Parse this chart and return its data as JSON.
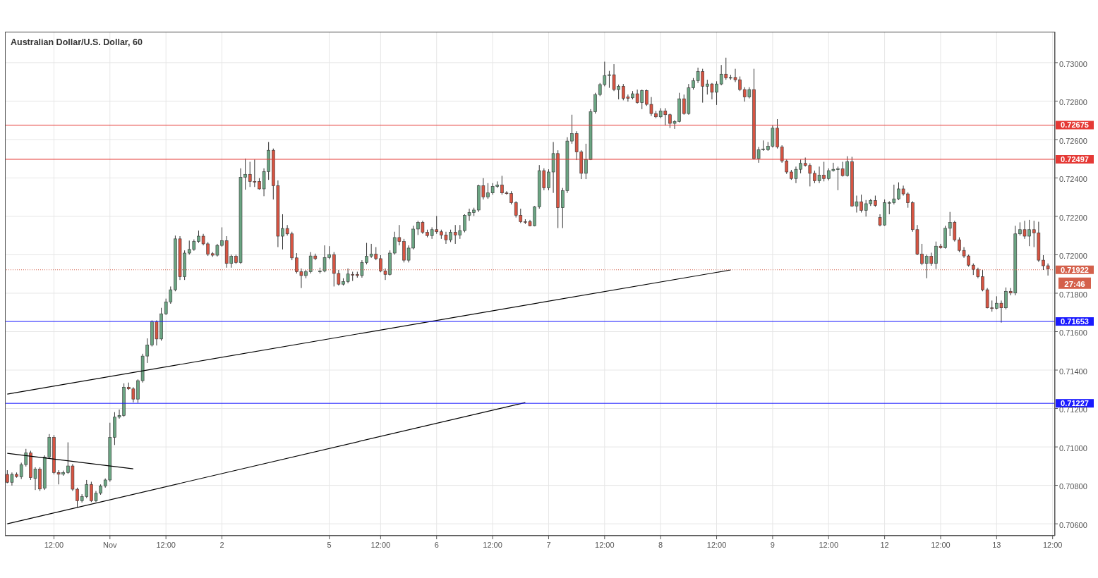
{
  "chart_data": {
    "type": "candlestick",
    "title": "Australian Dollar/U.S. Dollar, 60",
    "categories": [
      null,
      null,
      null,
      null,
      null,
      null,
      null,
      null,
      null,
      null,
      "12:00",
      null,
      null,
      null,
      null,
      null,
      null,
      null,
      null,
      null,
      null,
      null,
      "Nov",
      null,
      null,
      null,
      null,
      null,
      null,
      null,
      null,
      null,
      null,
      null,
      "12:00",
      null,
      null,
      null,
      null,
      null,
      null,
      null,
      null,
      null,
      null,
      null,
      "2",
      null,
      null,
      null,
      null,
      null,
      null,
      null,
      null,
      null,
      null,
      null,
      null,
      null,
      null,
      null,
      null,
      null,
      null,
      null,
      null,
      null,
      null,
      "5",
      null,
      null,
      null,
      null,
      null,
      null,
      null,
      null,
      null,
      null,
      "12:00",
      null,
      null,
      null,
      null,
      null,
      null,
      null,
      null,
      null,
      null,
      null,
      "6",
      null,
      null,
      null,
      null,
      null,
      null,
      null,
      null,
      null,
      null,
      null,
      "12:00",
      null,
      null,
      null,
      null,
      null,
      null,
      null,
      null,
      null,
      null,
      null,
      "7",
      null,
      null,
      null,
      null,
      null,
      null,
      null,
      null,
      null,
      null,
      null,
      "12:00",
      null,
      null,
      null,
      null,
      null,
      null,
      null,
      null,
      null,
      null,
      null,
      "8",
      null,
      null,
      null,
      null,
      null,
      null,
      null,
      null,
      null,
      null,
      null,
      "12:00",
      null,
      null,
      null,
      null,
      null,
      null,
      null,
      null,
      null,
      null,
      null,
      "9",
      null,
      null,
      null,
      null,
      null,
      null,
      null,
      null,
      null,
      null,
      null,
      "12:00",
      null,
      null,
      null,
      null,
      null,
      null,
      null,
      null,
      null,
      null,
      null,
      "12",
      null,
      null,
      null,
      null,
      null,
      null,
      null,
      null,
      null,
      null,
      null,
      "12:00",
      null,
      null,
      null,
      null,
      null,
      null,
      null,
      null,
      null,
      null,
      null,
      "13",
      null,
      null,
      null,
      null,
      null,
      null,
      null,
      null,
      null,
      null,
      null,
      "12:00"
    ],
    "ohlc": [
      [
        0.70857,
        0.70879,
        0.70811,
        0.70816
      ],
      [
        0.70816,
        0.70867,
        0.70799,
        0.70857
      ],
      [
        0.70857,
        0.70867,
        0.7084,
        0.70846
      ],
      [
        0.70845,
        0.70918,
        0.70833,
        0.70908
      ],
      [
        0.70908,
        0.7099,
        0.70898,
        0.70969
      ],
      [
        0.70969,
        0.7098,
        0.70828,
        0.7084
      ],
      [
        0.70836,
        0.70894,
        0.70776,
        0.70884
      ],
      [
        0.70884,
        0.70894,
        0.70771,
        0.70781
      ],
      [
        0.70785,
        0.70956,
        0.70776,
        0.70947
      ],
      [
        0.70947,
        0.71067,
        0.70939,
        0.7105
      ],
      [
        0.7105,
        0.71062,
        0.70857,
        0.70867
      ],
      [
        0.70867,
        0.70879,
        0.70805,
        0.70858
      ],
      [
        0.70858,
        0.70877,
        0.7085,
        0.70867
      ],
      [
        0.70867,
        0.71024,
        0.7086,
        0.70901
      ],
      [
        0.70901,
        0.70911,
        0.70771,
        0.7078
      ],
      [
        0.7078,
        0.70788,
        0.70686,
        0.7072
      ],
      [
        0.7072,
        0.70754,
        0.70711,
        0.70742
      ],
      [
        0.70742,
        0.70828,
        0.70734,
        0.70805
      ],
      [
        0.70805,
        0.70819,
        0.70713,
        0.7072
      ],
      [
        0.7072,
        0.70771,
        0.70713,
        0.70759
      ],
      [
        0.70759,
        0.70805,
        0.70751,
        0.70797
      ],
      [
        0.70797,
        0.70836,
        0.70788,
        0.70828
      ],
      [
        0.70828,
        0.71126,
        0.70819,
        0.7105
      ],
      [
        0.7105,
        0.71181,
        0.7101,
        0.71155
      ],
      [
        0.71155,
        0.71195,
        0.71147,
        0.71164
      ],
      [
        0.71164,
        0.71331,
        0.71157,
        0.71311
      ],
      [
        0.71311,
        0.71335,
        0.71297,
        0.71302
      ],
      [
        0.71302,
        0.71311,
        0.71232,
        0.71249
      ],
      [
        0.71249,
        0.71352,
        0.71229,
        0.71345
      ],
      [
        0.71345,
        0.71485,
        0.71335,
        0.71473
      ],
      [
        0.71473,
        0.71565,
        0.71437,
        0.71531
      ],
      [
        0.71531,
        0.71659,
        0.71523,
        0.71651
      ],
      [
        0.71651,
        0.71659,
        0.71528,
        0.71562
      ],
      [
        0.71562,
        0.71724,
        0.71553,
        0.71693
      ],
      [
        0.71693,
        0.71772,
        0.71687,
        0.71755
      ],
      [
        0.71755,
        0.71835,
        0.71745,
        0.71818
      ],
      [
        0.71818,
        0.721,
        0.7181,
        0.72083
      ],
      [
        0.72083,
        0.72097,
        0.71869,
        0.71886
      ],
      [
        0.71886,
        0.72023,
        0.71869,
        0.72009
      ],
      [
        0.72009,
        0.72074,
        0.72001,
        0.72028
      ],
      [
        0.72028,
        0.7208,
        0.72021,
        0.72069
      ],
      [
        0.72069,
        0.72126,
        0.72062,
        0.72097
      ],
      [
        0.72097,
        0.72109,
        0.72049,
        0.72057
      ],
      [
        0.72057,
        0.72066,
        0.71994,
        0.72003
      ],
      [
        0.72006,
        0.72014,
        0.71989,
        0.71998
      ],
      [
        0.71998,
        0.72057,
        0.71991,
        0.72049
      ],
      [
        0.72049,
        0.72143,
        0.72042,
        0.72074
      ],
      [
        0.72074,
        0.72097,
        0.71933,
        0.71955
      ],
      [
        0.71955,
        0.72001,
        0.71933,
        0.71992
      ],
      [
        0.71992,
        0.72001,
        0.71953,
        0.7196
      ],
      [
        0.7196,
        0.7245,
        0.71953,
        0.72404
      ],
      [
        0.72404,
        0.72501,
        0.72339,
        0.72419
      ],
      [
        0.72419,
        0.72484,
        0.72353,
        0.72382
      ],
      [
        0.72382,
        0.72496,
        0.72353,
        0.72378
      ],
      [
        0.72382,
        0.72399,
        0.72339,
        0.72343
      ],
      [
        0.72343,
        0.7245,
        0.72305,
        0.72433
      ],
      [
        0.72433,
        0.72587,
        0.7239,
        0.72544
      ],
      [
        0.72544,
        0.72553,
        0.72288,
        0.7236
      ],
      [
        0.7236,
        0.72387,
        0.7204,
        0.72097
      ],
      [
        0.72097,
        0.72211,
        0.72028,
        0.72137
      ],
      [
        0.72137,
        0.72155,
        0.721,
        0.72109
      ],
      [
        0.72109,
        0.7212,
        0.71972,
        0.71984
      ],
      [
        0.71984,
        0.72009,
        0.71903,
        0.71912
      ],
      [
        0.71912,
        0.71929,
        0.71827,
        0.71892
      ],
      [
        0.71892,
        0.71921,
        0.71878,
        0.71912
      ],
      [
        0.71912,
        0.72014,
        0.71903,
        0.71994
      ],
      [
        0.71994,
        0.72006,
        0.71972,
        0.7198
      ],
      [
        0.71912,
        0.71933,
        0.71903,
        0.71916
      ],
      [
        0.71916,
        0.72049,
        0.71909,
        0.71986
      ],
      [
        0.71986,
        0.72045,
        0.71977,
        0.72001
      ],
      [
        0.72001,
        0.72014,
        0.71835,
        0.71903
      ],
      [
        0.71903,
        0.71921,
        0.7184,
        0.71847
      ],
      [
        0.71847,
        0.71878,
        0.7184,
        0.71861
      ],
      [
        0.71861,
        0.71929,
        0.71852,
        0.719
      ],
      [
        0.71898,
        0.71912,
        0.71864,
        0.71895
      ],
      [
        0.71898,
        0.71912,
        0.71881,
        0.71892
      ],
      [
        0.71892,
        0.71972,
        0.71881,
        0.7196
      ],
      [
        0.7196,
        0.72062,
        0.7195,
        0.71992
      ],
      [
        0.71992,
        0.72057,
        0.71984,
        0.72004
      ],
      [
        0.72004,
        0.7204,
        0.71972,
        0.7198
      ],
      [
        0.7198,
        0.71998,
        0.71909,
        0.71916
      ],
      [
        0.71916,
        0.71929,
        0.71869,
        0.71898
      ],
      [
        0.71898,
        0.72023,
        0.71892,
        0.72009
      ],
      [
        0.72009,
        0.7212,
        0.72001,
        0.7209
      ],
      [
        0.7209,
        0.72155,
        0.72049,
        0.72069
      ],
      [
        0.72069,
        0.72083,
        0.7196,
        0.71972
      ],
      [
        0.71972,
        0.72049,
        0.7196,
        0.72035
      ],
      [
        0.72035,
        0.72151,
        0.72028,
        0.72134
      ],
      [
        0.72134,
        0.72177,
        0.72103,
        0.72169
      ],
      [
        0.72169,
        0.72177,
        0.72109,
        0.72117
      ],
      [
        0.72117,
        0.72131,
        0.72091,
        0.721
      ],
      [
        0.721,
        0.72143,
        0.72083,
        0.72131
      ],
      [
        0.72131,
        0.72202,
        0.72109,
        0.7212
      ],
      [
        0.7212,
        0.72131,
        0.72083,
        0.72103
      ],
      [
        0.72103,
        0.7212,
        0.72057,
        0.72078
      ],
      [
        0.72078,
        0.72131,
        0.72066,
        0.72117
      ],
      [
        0.72117,
        0.72155,
        0.72057,
        0.72103
      ],
      [
        0.72103,
        0.72155,
        0.72083,
        0.72126
      ],
      [
        0.72126,
        0.72211,
        0.72117,
        0.72206
      ],
      [
        0.72206,
        0.7224,
        0.72177,
        0.7222
      ],
      [
        0.7222,
        0.72245,
        0.72202,
        0.72233
      ],
      [
        0.72233,
        0.72365,
        0.72223,
        0.7236
      ],
      [
        0.7236,
        0.72399,
        0.72288,
        0.72301
      ],
      [
        0.72301,
        0.72373,
        0.72291,
        0.72322
      ],
      [
        0.72322,
        0.72373,
        0.72313,
        0.72356
      ],
      [
        0.72356,
        0.72382,
        0.72348,
        0.72363
      ],
      [
        0.72363,
        0.72411,
        0.72313,
        0.72322
      ],
      [
        0.72322,
        0.72331,
        0.72313,
        0.72319
      ],
      [
        0.72319,
        0.72331,
        0.72262,
        0.72271
      ],
      [
        0.72271,
        0.72279,
        0.72194,
        0.72206
      ],
      [
        0.72206,
        0.7224,
        0.72165,
        0.72172
      ],
      [
        0.72172,
        0.72185,
        0.7216,
        0.72169
      ],
      [
        0.72172,
        0.72182,
        0.72148,
        0.72151
      ],
      [
        0.72151,
        0.72254,
        0.72148,
        0.7225
      ],
      [
        0.7225,
        0.72467,
        0.7224,
        0.72438
      ],
      [
        0.72438,
        0.7245,
        0.72336,
        0.72348
      ],
      [
        0.72348,
        0.72445,
        0.72336,
        0.72431
      ],
      [
        0.72431,
        0.72587,
        0.72322,
        0.72527
      ],
      [
        0.72527,
        0.72544,
        0.72139,
        0.72245
      ],
      [
        0.72245,
        0.72348,
        0.72139,
        0.72334
      ],
      [
        0.72334,
        0.72612,
        0.72322,
        0.72592
      ],
      [
        0.72592,
        0.72729,
        0.72578,
        0.72631
      ],
      [
        0.72631,
        0.72643,
        0.72493,
        0.72535
      ],
      [
        0.72535,
        0.72544,
        0.72394,
        0.72424
      ],
      [
        0.72424,
        0.72578,
        0.72394,
        0.72496
      ],
      [
        0.72496,
        0.72758,
        0.72493,
        0.72744
      ],
      [
        0.72744,
        0.72843,
        0.72735,
        0.72834
      ],
      [
        0.72834,
        0.72894,
        0.72826,
        0.72886
      ],
      [
        0.72886,
        0.73005,
        0.72877,
        0.72933
      ],
      [
        0.72933,
        0.72957,
        0.72869,
        0.72937
      ],
      [
        0.72937,
        0.72992,
        0.72852,
        0.7286
      ],
      [
        0.7286,
        0.72886,
        0.72809,
        0.72877
      ],
      [
        0.72877,
        0.72889,
        0.72804,
        0.72814
      ],
      [
        0.72821,
        0.72834,
        0.72797,
        0.72814
      ],
      [
        0.72817,
        0.72852,
        0.72809,
        0.72838
      ],
      [
        0.72838,
        0.7286,
        0.72787,
        0.72792
      ],
      [
        0.72792,
        0.7286,
        0.72758,
        0.72855
      ],
      [
        0.72855,
        0.7286,
        0.72775,
        0.72783
      ],
      [
        0.72783,
        0.72821,
        0.72723,
        0.72735
      ],
      [
        0.72735,
        0.72749,
        0.72711,
        0.72718
      ],
      [
        0.72718,
        0.72763,
        0.72711,
        0.72749
      ],
      [
        0.72749,
        0.72763,
        0.72672,
        0.72729
      ],
      [
        0.72729,
        0.72735,
        0.7266,
        0.72684
      ],
      [
        0.72684,
        0.72701,
        0.72655,
        0.72694
      ],
      [
        0.72694,
        0.72843,
        0.72689,
        0.72812
      ],
      [
        0.72812,
        0.72834,
        0.72729,
        0.72735
      ],
      [
        0.72735,
        0.72889,
        0.72729,
        0.72869
      ],
      [
        0.72869,
        0.7292,
        0.7286,
        0.72906
      ],
      [
        0.72906,
        0.72974,
        0.72894,
        0.72954
      ],
      [
        0.72954,
        0.72968,
        0.72792,
        0.72877
      ],
      [
        0.72877,
        0.72911,
        0.72834,
        0.72889
      ],
      [
        0.72889,
        0.72894,
        0.72809,
        0.72846
      ],
      [
        0.72846,
        0.72903,
        0.7278,
        0.72889
      ],
      [
        0.72889,
        0.72988,
        0.72882,
        0.7294
      ],
      [
        0.7294,
        0.73026,
        0.72911,
        0.7292
      ],
      [
        0.7292,
        0.72937,
        0.72911,
        0.72923
      ],
      [
        0.72923,
        0.72968,
        0.72899,
        0.72911
      ],
      [
        0.72911,
        0.72928,
        0.72852,
        0.7286
      ],
      [
        0.7286,
        0.72872,
        0.72797,
        0.72821
      ],
      [
        0.72821,
        0.72872,
        0.72814,
        0.7286
      ],
      [
        0.7286,
        0.72968,
        0.72496,
        0.72501
      ],
      [
        0.72501,
        0.72561,
        0.72479,
        0.72547
      ],
      [
        0.72547,
        0.72595,
        0.72541,
        0.72551
      ],
      [
        0.72547,
        0.72587,
        0.72541,
        0.72565
      ],
      [
        0.72565,
        0.72672,
        0.72558,
        0.72659
      ],
      [
        0.72659,
        0.72706,
        0.72553,
        0.72561
      ],
      [
        0.72561,
        0.7257,
        0.72479,
        0.72488
      ],
      [
        0.72488,
        0.72496,
        0.72421,
        0.72431
      ],
      [
        0.72431,
        0.72442,
        0.7239,
        0.72397
      ],
      [
        0.72397,
        0.72459,
        0.72373,
        0.72445
      ],
      [
        0.72445,
        0.72496,
        0.72424,
        0.72476
      ],
      [
        0.72476,
        0.72506,
        0.72459,
        0.72465
      ],
      [
        0.72465,
        0.72476,
        0.72356,
        0.72424
      ],
      [
        0.72424,
        0.72438,
        0.72373,
        0.72385
      ],
      [
        0.72385,
        0.72459,
        0.72373,
        0.72414
      ],
      [
        0.72414,
        0.72484,
        0.72382,
        0.72397
      ],
      [
        0.72397,
        0.7245,
        0.72387,
        0.72438
      ],
      [
        0.72438,
        0.72479,
        0.72433,
        0.72445
      ],
      [
        0.72445,
        0.72459,
        0.72336,
        0.72447
      ],
      [
        0.72447,
        0.72484,
        0.72407,
        0.72412
      ],
      [
        0.72412,
        0.72513,
        0.72407,
        0.72484
      ],
      [
        0.72484,
        0.7251,
        0.7225,
        0.72254
      ],
      [
        0.72254,
        0.72308,
        0.7222,
        0.72276
      ],
      [
        0.72276,
        0.72313,
        0.7222,
        0.72231
      ],
      [
        0.72231,
        0.72285,
        0.72199,
        0.72266
      ],
      [
        0.72266,
        0.72291,
        0.72254,
        0.72283
      ],
      [
        0.72283,
        0.72308,
        0.7225,
        0.72257
      ],
      [
        0.72194,
        0.72211,
        0.72148,
        0.72155
      ],
      [
        0.72155,
        0.72288,
        0.72151,
        0.72271
      ],
      [
        0.72268,
        0.72279,
        0.72211,
        0.72271
      ],
      [
        0.72271,
        0.72365,
        0.72262,
        0.72291
      ],
      [
        0.72291,
        0.72377,
        0.72285,
        0.72343
      ],
      [
        0.72343,
        0.7236,
        0.72308,
        0.72317
      ],
      [
        0.72317,
        0.72325,
        0.72245,
        0.72271
      ],
      [
        0.72271,
        0.72279,
        0.7212,
        0.72131
      ],
      [
        0.72131,
        0.72155,
        0.71998,
        0.72003
      ],
      [
        0.72003,
        0.72057,
        0.71946,
        0.71955
      ],
      [
        0.71955,
        0.72001,
        0.71878,
        0.71992
      ],
      [
        0.71992,
        0.72011,
        0.71943,
        0.71955
      ],
      [
        0.71955,
        0.72069,
        0.71926,
        0.72045
      ],
      [
        0.72045,
        0.72057,
        0.72032,
        0.72037
      ],
      [
        0.72037,
        0.72151,
        0.72032,
        0.72138
      ],
      [
        0.72138,
        0.72223,
        0.72097,
        0.72169
      ],
      [
        0.72169,
        0.72177,
        0.72069,
        0.72078
      ],
      [
        0.72078,
        0.72091,
        0.72014,
        0.72023
      ],
      [
        0.72023,
        0.7204,
        0.71984,
        0.71994
      ],
      [
        0.71994,
        0.72001,
        0.71938,
        0.71946
      ],
      [
        0.71946,
        0.71955,
        0.71895,
        0.71924
      ],
      [
        0.71924,
        0.71933,
        0.71878,
        0.71886
      ],
      [
        0.71886,
        0.71921,
        0.7181,
        0.71818
      ],
      [
        0.71818,
        0.71827,
        0.71721,
        0.71724
      ],
      [
        0.71724,
        0.71762,
        0.71704,
        0.71721
      ],
      [
        0.71721,
        0.71784,
        0.71716,
        0.71748
      ],
      [
        0.71748,
        0.71762,
        0.71647,
        0.71724
      ],
      [
        0.71724,
        0.7183,
        0.71716,
        0.7181
      ],
      [
        0.7181,
        0.71827,
        0.71789,
        0.71801
      ],
      [
        0.71801,
        0.72151,
        0.71789,
        0.72109
      ],
      [
        0.72109,
        0.72169,
        0.721,
        0.72131
      ],
      [
        0.72131,
        0.72177,
        0.72083,
        0.72097
      ],
      [
        0.72097,
        0.72182,
        0.72045,
        0.72131
      ],
      [
        0.72131,
        0.72177,
        0.7204,
        0.72114
      ],
      [
        0.72114,
        0.72172,
        0.71963,
        0.71972
      ],
      [
        0.71972,
        0.71998,
        0.71921,
        0.71943
      ],
      [
        0.71943,
        0.71955,
        0.71892,
        0.71926
      ],
      null
    ],
    "series": [
      {
        "type": "line",
        "color": "#000000",
        "values": [
          0.71275,
          null,
          null,
          null,
          null,
          null,
          null,
          null,
          null,
          null,
          null,
          null,
          null,
          null,
          null,
          null,
          null,
          null,
          null,
          null,
          null,
          null,
          null,
          null,
          null,
          null,
          null,
          null,
          null,
          null,
          null,
          null,
          null,
          null,
          null,
          null,
          null,
          null,
          null,
          null,
          null,
          null,
          null,
          null,
          null,
          null,
          null,
          null,
          null,
          null,
          null,
          null,
          null,
          null,
          null,
          null,
          null,
          null,
          null,
          null,
          null,
          null,
          null,
          null,
          null,
          null,
          null,
          null,
          null,
          null,
          null,
          null,
          null,
          null,
          null,
          null,
          null,
          null,
          null,
          null,
          null,
          null,
          null,
          null,
          null,
          null,
          null,
          null,
          null,
          null,
          null,
          null,
          null,
          null,
          null,
          null,
          null,
          null,
          null,
          null,
          null,
          null,
          null,
          null,
          null,
          null,
          null,
          null,
          null,
          null,
          null,
          null,
          null,
          null,
          null,
          null,
          null,
          null,
          null,
          null,
          null,
          null,
          null,
          null,
          null,
          null,
          null,
          null,
          null,
          null,
          null,
          null,
          null,
          null,
          null,
          null,
          null,
          null,
          null,
          null,
          null,
          null,
          null,
          null,
          null,
          null,
          null,
          null,
          null,
          null,
          null,
          null,
          null,
          null,
          null,
          0.71921,
          null,
          null,
          null,
          null,
          null,
          null,
          null,
          null,
          null,
          null,
          null,
          null,
          null,
          null,
          null,
          null,
          null,
          null,
          null,
          null,
          null,
          null,
          null,
          null,
          null,
          null,
          null,
          null,
          null,
          null,
          null,
          null,
          null,
          null,
          null,
          null,
          null,
          null,
          null,
          null,
          null,
          null,
          null,
          null,
          null,
          null,
          null,
          null,
          null,
          null,
          null,
          null,
          null,
          null,
          null,
          null,
          null,
          null,
          null,
          null,
          null,
          null,
          null,
          null,
          null,
          null,
          null,
          null,
          null
        ]
      },
      {
        "type": "line",
        "color": "#000000",
        "values": [
          0.706,
          null,
          null,
          null,
          null,
          null,
          null,
          null,
          null,
          null,
          null,
          null,
          null,
          null,
          null,
          null,
          null,
          null,
          null,
          null,
          null,
          null,
          null,
          null,
          null,
          null,
          null,
          null,
          null,
          null,
          null,
          null,
          null,
          null,
          null,
          null,
          null,
          null,
          null,
          null,
          null,
          null,
          null,
          null,
          null,
          null,
          null,
          null,
          null,
          null,
          null,
          null,
          null,
          null,
          null,
          null,
          null,
          null,
          null,
          null,
          null,
          null,
          null,
          null,
          null,
          null,
          null,
          null,
          null,
          null,
          null,
          null,
          null,
          null,
          null,
          null,
          null,
          null,
          null,
          null,
          null,
          null,
          null,
          null,
          null,
          null,
          null,
          null,
          null,
          null,
          null,
          null,
          null,
          null,
          null,
          null,
          null,
          null,
          null,
          null,
          null,
          null,
          null,
          null,
          null,
          null,
          null,
          null,
          null,
          null,
          null,
          0.71231,
          null,
          null,
          null,
          null,
          null,
          null,
          null,
          null,
          null,
          null,
          null,
          null,
          null,
          null,
          null,
          null,
          null,
          null,
          null,
          null,
          null,
          null,
          null,
          null,
          null,
          null,
          null,
          null,
          null,
          null,
          null,
          null,
          null,
          null,
          null,
          null,
          null,
          null,
          null,
          null,
          null,
          null,
          null,
          null,
          null,
          null,
          null,
          null,
          null,
          null,
          null,
          null,
          null,
          null,
          null,
          null,
          null,
          null,
          null,
          null,
          null,
          null,
          null,
          null,
          null,
          null,
          null,
          null,
          null,
          null,
          null,
          null,
          null,
          null,
          null,
          null,
          null,
          null,
          null,
          null,
          null,
          null,
          null,
          null,
          null,
          null,
          null,
          null,
          null,
          null,
          null,
          null,
          null,
          null,
          null,
          null,
          null,
          null,
          null,
          null,
          null,
          null,
          null,
          null,
          null,
          null,
          null,
          null,
          null,
          null,
          null,
          null,
          null
        ]
      },
      {
        "type": "line",
        "color": "#000000",
        "values": [
          0.70967,
          null,
          null,
          null,
          null,
          null,
          null,
          null,
          null,
          null,
          null,
          null,
          null,
          null,
          null,
          null,
          null,
          null,
          null,
          null,
          null,
          null,
          null,
          null,
          null,
          null,
          null,
          0.70886,
          null,
          null,
          null,
          null,
          null,
          null,
          null,
          null,
          null,
          null,
          null,
          null,
          null,
          null,
          null,
          null,
          null,
          null,
          null,
          null,
          null,
          null,
          null,
          null,
          null,
          null,
          null,
          null,
          null,
          null,
          null,
          null,
          null,
          null,
          null,
          null,
          null,
          null,
          null,
          null,
          null,
          null,
          null,
          null,
          null,
          null,
          null,
          null,
          null,
          null,
          null,
          null,
          null,
          null,
          null,
          null,
          null,
          null,
          null,
          null,
          null,
          null,
          null,
          null,
          null,
          null,
          null,
          null,
          null,
          null,
          null,
          null,
          null,
          null,
          null,
          null,
          null,
          null,
          null,
          null,
          null,
          null,
          null,
          null,
          null,
          null,
          null,
          null,
          null,
          null,
          null,
          null,
          null,
          null,
          null,
          null,
          null,
          null,
          null,
          null,
          null,
          null,
          null,
          null,
          null,
          null,
          null,
          null,
          null,
          null,
          null,
          null,
          null,
          null,
          null,
          null,
          null,
          null,
          null,
          null,
          null,
          null,
          null,
          null,
          null,
          null,
          null,
          null,
          null,
          null,
          null,
          null,
          null,
          null,
          null,
          null,
          null,
          null,
          null,
          null,
          null,
          null,
          null,
          null,
          null,
          null,
          null,
          null,
          null,
          null,
          null,
          null,
          null,
          null,
          null,
          null,
          null,
          null,
          null,
          null,
          null,
          null,
          null,
          null,
          null,
          null,
          null,
          null,
          null,
          null,
          null,
          null,
          null,
          null,
          null,
          null,
          null,
          null,
          null,
          null,
          null,
          null,
          null,
          null,
          null,
          null,
          null,
          null,
          null,
          null,
          null,
          null,
          null,
          null,
          null,
          null,
          null
        ]
      }
    ],
    "ylim": [
      0.70538,
      0.73161
    ],
    "yticks": [
      {
        "value": 0.706,
        "label": "0.70600"
      },
      {
        "value": 0.708,
        "label": "0.70800"
      },
      {
        "value": 0.71,
        "label": "0.71000"
      },
      {
        "value": 0.712,
        "label": "0.71200"
      },
      {
        "value": 0.714,
        "label": "0.71400"
      },
      {
        "value": 0.716,
        "label": "0.71600"
      },
      {
        "value": 0.718,
        "label": "0.71800"
      },
      {
        "value": 0.72,
        "label": "0.72000"
      },
      {
        "value": 0.722,
        "label": "0.72200"
      },
      {
        "value": 0.724,
        "label": "0.72400"
      },
      {
        "value": 0.726,
        "label": "0.72600"
      },
      {
        "value": 0.728,
        "label": "0.72800"
      },
      {
        "value": 0.73,
        "label": "0.73000"
      }
    ],
    "ref_lines": [
      {
        "axis": "y",
        "value": 0.72675,
        "label": "0.72675",
        "color": "#e53935"
      },
      {
        "axis": "y",
        "value": 0.72497,
        "label": "0.72497",
        "color": "#e53935"
      },
      {
        "axis": "y",
        "value": 0.71922,
        "label": "0.71922",
        "color": "#d4604b",
        "line_style": "dotted"
      },
      {
        "axis": "y",
        "value": 0.71653,
        "label": "0.71653",
        "color": "#1a1aff"
      },
      {
        "axis": "y",
        "value": 0.71227,
        "label": "0.71227",
        "color": "#1a1aff"
      }
    ],
    "annotations": [
      "27:46"
    ],
    "grid": true
  }
}
